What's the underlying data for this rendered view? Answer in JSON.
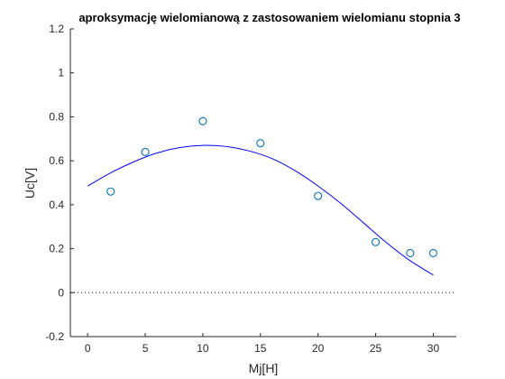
{
  "chart_data": {
    "type": "scatter",
    "title": "aproksymację wielomianową z zastosowaniem wielomianu stopnia 3",
    "xlabel": "Mj[H]",
    "ylabel": "Uc[V]",
    "xlim": [
      -1.5,
      32
    ],
    "ylim": [
      -0.2,
      1.2
    ],
    "xticks": [
      0,
      5,
      10,
      15,
      20,
      25,
      30
    ],
    "yticks": [
      -0.2,
      0,
      0.2,
      0.4,
      0.6,
      0.8,
      1,
      1.2
    ],
    "xtick_labels": [
      "0",
      "5",
      "10",
      "15",
      "20",
      "25",
      "30"
    ],
    "ytick_labels": [
      "-0.2",
      "0",
      "0.2",
      "0.4",
      "0.6",
      "0.8",
      "1",
      "1.2"
    ],
    "grid": false,
    "series": [
      {
        "kind": "markers",
        "marker": "circle",
        "color": "#0072BD",
        "x": [
          2,
          5,
          10,
          15,
          20,
          25,
          28,
          30
        ],
        "y": [
          0.46,
          0.64,
          0.78,
          0.68,
          0.44,
          0.23,
          0.18,
          0.18
        ]
      },
      {
        "kind": "fit-curve",
        "color": "#0000FF",
        "x_range": [
          0,
          30
        ],
        "x": [
          0,
          2,
          4,
          6,
          8,
          10,
          12,
          14,
          16,
          18,
          20,
          22,
          24,
          26,
          28,
          30
        ],
        "y": [
          0.485,
          0.545,
          0.595,
          0.635,
          0.66,
          0.67,
          0.665,
          0.645,
          0.61,
          0.555,
          0.485,
          0.405,
          0.315,
          0.225,
          0.145,
          0.08
        ]
      },
      {
        "kind": "reference-line",
        "style": "dotted",
        "color": "#000000",
        "y": 0
      }
    ]
  }
}
